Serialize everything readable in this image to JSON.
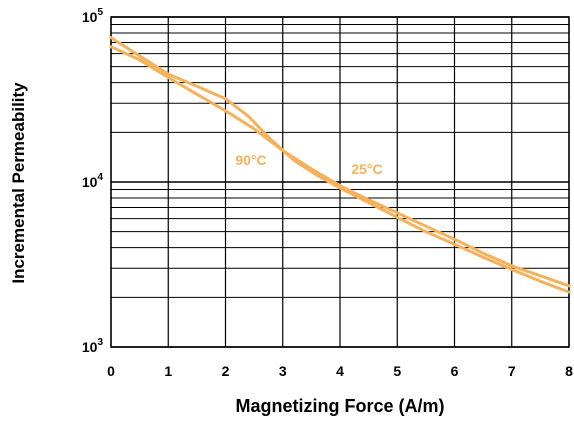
{
  "chart_data": {
    "type": "line",
    "title": "",
    "xlabel": "Magnetizing Force (A/m)",
    "ylabel": "Incremental Permeability",
    "xlim": [
      0,
      8
    ],
    "ylim": [
      1000,
      100000
    ],
    "y_scale": "log",
    "grid": true,
    "x_ticks": [
      "0",
      "1",
      "2",
      "3",
      "4",
      "5",
      "6",
      "7",
      "8"
    ],
    "y_ticks": [
      {
        "value": 1000,
        "base": "10",
        "exp": "3"
      },
      {
        "value": 10000,
        "base": "10",
        "exp": "4"
      },
      {
        "value": 100000,
        "base": "10",
        "exp": "5"
      }
    ],
    "series": [
      {
        "name": "90°C",
        "color": "#f5b25a",
        "x": [
          0,
          0.5,
          1,
          1.5,
          2,
          2.4,
          2.8,
          3.2,
          3.6,
          4,
          4.5,
          5,
          5.5,
          6,
          6.5,
          7,
          7.5,
          8
        ],
        "y": [
          75000,
          58000,
          45000,
          38000,
          32000,
          25000,
          18000,
          13500,
          11000,
          9200,
          7500,
          6100,
          5000,
          4200,
          3500,
          2950,
          2500,
          2150
        ]
      },
      {
        "name": "25°C",
        "color": "#f5b25a",
        "x": [
          0,
          0.5,
          1,
          1.5,
          2,
          2.5,
          3,
          3.5,
          4,
          4.5,
          5,
          5.5,
          6,
          6.5,
          7,
          7.5,
          8
        ],
        "y": [
          66000,
          55000,
          43000,
          34000,
          27000,
          21000,
          15500,
          12000,
          9500,
          7800,
          6500,
          5400,
          4500,
          3700,
          3100,
          2700,
          2350
        ]
      }
    ]
  }
}
